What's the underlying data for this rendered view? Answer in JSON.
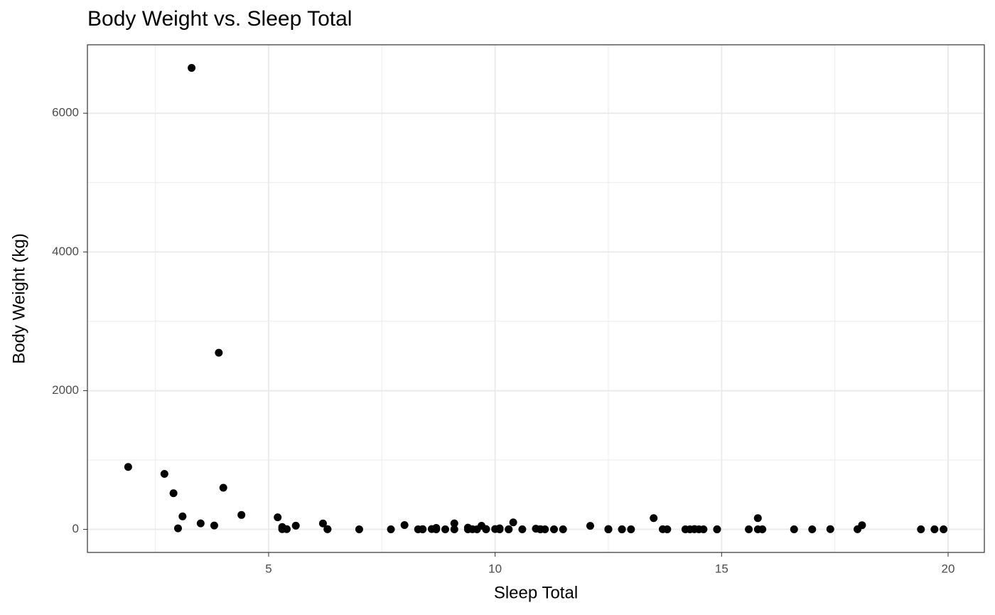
{
  "chart_data": {
    "type": "scatter",
    "title": "Body Weight vs. Sleep Total",
    "x_label": "Sleep Total",
    "y_label": "Body Weight (kg)",
    "color": "#000000",
    "grid": true,
    "xlim": [
      1.0,
      20.8
    ],
    "ylim": [
      -332.7,
      6986.7
    ],
    "xticks": [
      5,
      10,
      15,
      20
    ],
    "yticks": [
      0,
      2000,
      4000,
      6000
    ],
    "minor_xticks": [
      2.5,
      7.5,
      12.5,
      17.5
    ],
    "minor_yticks": [
      1000,
      3000,
      5000
    ],
    "x": [
      12.1,
      17.0,
      14.4,
      14.9,
      4.0,
      14.4,
      8.7,
      7.0,
      10.1,
      3.0,
      5.3,
      9.4,
      10.0,
      12.5,
      10.3,
      8.3,
      9.1,
      17.4,
      5.3,
      18.0,
      3.9,
      19.7,
      2.9,
      3.1,
      10.1,
      10.9,
      14.9,
      12.5,
      9.8,
      1.9,
      2.7,
      6.2,
      6.3,
      8.0,
      9.5,
      3.3,
      19.4,
      10.1,
      14.2,
      14.3,
      12.8,
      12.5,
      19.9,
      14.6,
      11.0,
      7.7,
      14.5,
      8.4,
      3.8,
      9.7,
      15.8,
      10.4,
      13.5,
      9.4,
      10.3,
      11.0,
      11.5,
      13.7,
      3.5,
      5.6,
      11.1,
      18.1,
      5.4,
      13.0,
      8.7,
      9.6,
      8.4,
      11.3,
      10.6,
      16.6,
      13.8,
      15.9,
      12.8,
      9.1,
      8.6,
      15.8,
      4.4,
      15.6,
      8.9,
      5.2,
      6.3,
      12.5,
      9.8
    ],
    "values": [
      50,
      0.48,
      1.35,
      0.019,
      600,
      3.85,
      20.49,
      0.045,
      14,
      14.8,
      33.5,
      0.728,
      4.75,
      0.42,
      0.06,
      1.0,
      0.005,
      3.5,
      2.95,
      1.7,
      2547,
      0.023,
      521,
      187,
      0.77,
      10,
      0.071,
      3.3,
      0.2,
      899.995,
      800,
      85,
      2.625,
      62,
      1.67,
      6654,
      0.37,
      6.8,
      0.053,
      0.12,
      0.035,
      0.022,
      0.01,
      0.266,
      1.4,
      0.21,
      0.028,
      2.5,
      55.5,
      52.2,
      162.564,
      100,
      161.499,
      25.235,
      0.55,
      1.1,
      0.021,
      1.62,
      86,
      53.18,
      1.1,
      60,
      3.6,
      0.32,
      0.044,
      0.743,
      0.075,
      0.148,
      0.122,
      0.92,
      0.101,
      0.205,
      0.048,
      86.25,
      4.5,
      0.112,
      207.501,
      0.9,
      0.104,
      173.33,
      2,
      3.38,
      4.23
    ]
  }
}
